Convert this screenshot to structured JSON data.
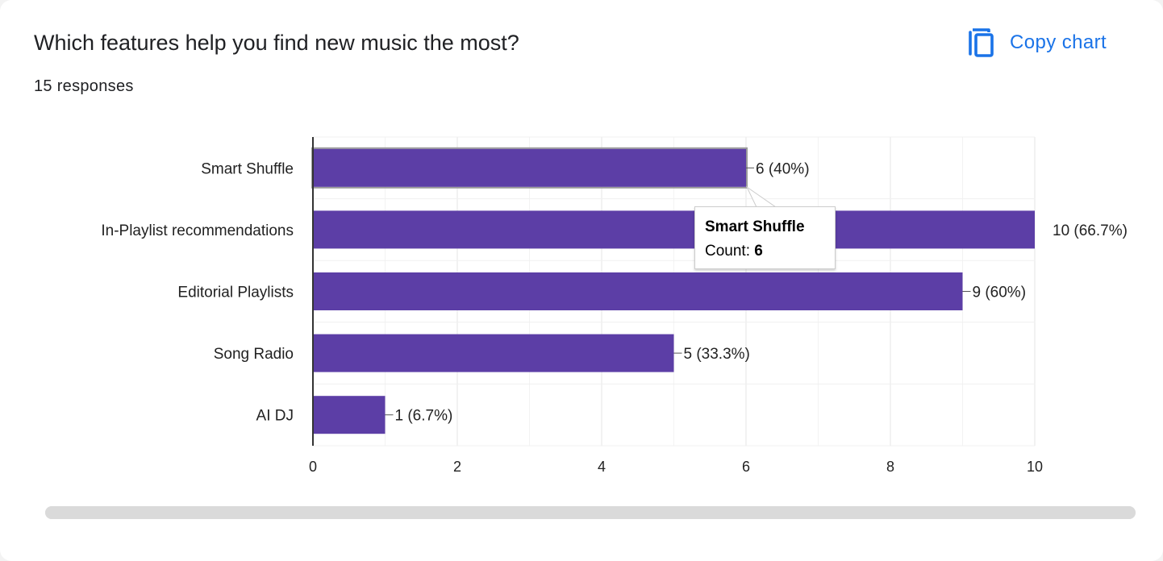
{
  "header": {
    "title": "Which features help you find new music the most?",
    "responses": "15 responses",
    "copy_label": "Copy chart",
    "copy_icon": "copy-icon"
  },
  "colors": {
    "bar": "#5c3ea6",
    "accent": "#1a73e8",
    "grid": "#e8e8e8",
    "axis": "#333333"
  },
  "tooltip": {
    "title": "Smart Shuffle",
    "count_label": "Count: ",
    "count_value": "6"
  },
  "chart_data": {
    "type": "bar",
    "orientation": "horizontal",
    "title": "",
    "xlabel": "",
    "ylabel": "",
    "categories": [
      "Smart Shuffle",
      "In-Playlist recommendations",
      "Editorial Playlists",
      "Song Radio",
      "AI DJ"
    ],
    "values": [
      6,
      10,
      9,
      5,
      1
    ],
    "data_labels": [
      "6 (40%)",
      "10 (66.7%)",
      "9 (60%)",
      "5 (33.3%)",
      "1 (6.7%)"
    ],
    "xlim": [
      0,
      10
    ],
    "x_ticks": [
      0,
      2,
      4,
      6,
      8,
      10
    ],
    "grid": true,
    "legend": "none"
  }
}
